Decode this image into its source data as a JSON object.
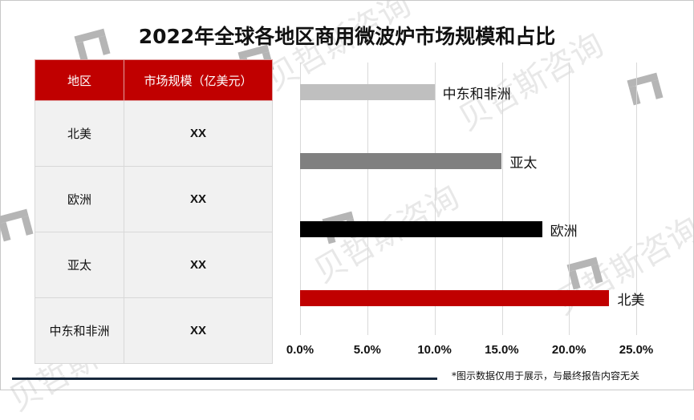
{
  "title": "2022年全球各地区商用微波炉市场规模和占比",
  "watermark": "贝哲斯咨询",
  "table": {
    "headers": [
      "地区",
      "市场规模（亿美元）"
    ],
    "rows": [
      {
        "region": "北美",
        "value": "XX"
      },
      {
        "region": "欧洲",
        "value": "XX"
      },
      {
        "region": "亚太",
        "value": "XX"
      },
      {
        "region": "中东和非洲",
        "value": "XX"
      }
    ]
  },
  "chart_data": {
    "type": "bar",
    "orientation": "horizontal",
    "title": "2022年全球各地区商用微波炉市场规模和占比",
    "categories": [
      "中东和非洲",
      "亚太",
      "欧洲",
      "北美"
    ],
    "values": [
      10.0,
      15.0,
      18.0,
      23.0
    ],
    "unit": "%",
    "colors": [
      "#bfbfbf",
      "#808080",
      "#000000",
      "#c00000"
    ],
    "xlim": [
      0,
      25
    ],
    "xticks": [
      "0.0%",
      "5.0%",
      "10.0%",
      "15.0%",
      "20.0%",
      "25.0%"
    ],
    "grid": true,
    "legend": "none",
    "xlabel": "",
    "ylabel": ""
  },
  "footnote": "*图示数据仅用于展示，与最终报告内容无关",
  "colors": {
    "accent": "#c00000",
    "rule": "#17283c",
    "cell_bg": "#f1f1f1"
  }
}
